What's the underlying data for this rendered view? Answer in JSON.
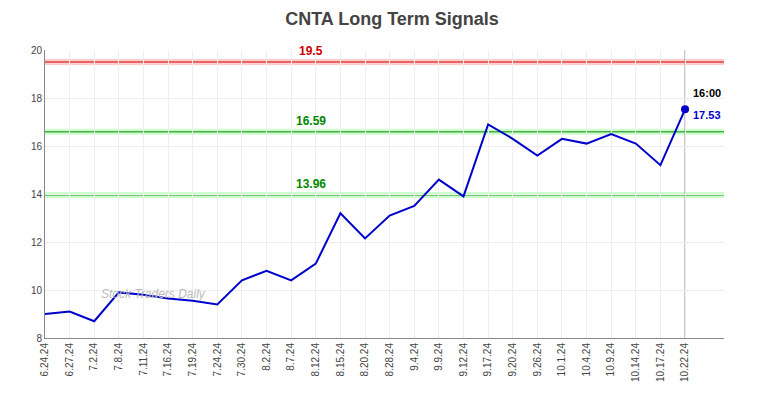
{
  "chart_data": {
    "type": "line",
    "title": "CNTA Long Term Signals",
    "categories": [
      "6.24.24",
      "6.27.24",
      "7.2.24",
      "7.8.24",
      "7.11.24",
      "7.16.24",
      "7.19.24",
      "7.24.24",
      "7.30.24",
      "8.2.24",
      "8.7.24",
      "8.12.24",
      "8.15.24",
      "8.20.24",
      "8.28.24",
      "9.4.24",
      "9.9.24",
      "9.12.24",
      "9.17.24",
      "9.20.24",
      "9.26.24",
      "10.1.24",
      "10.4.24",
      "10.9.24",
      "10.14.24",
      "10.17.24",
      "10.22.24"
    ],
    "values": [
      9.0,
      9.1,
      8.7,
      9.9,
      9.8,
      9.65,
      9.55,
      9.4,
      10.4,
      10.8,
      10.4,
      11.1,
      13.2,
      12.15,
      13.1,
      13.5,
      14.6,
      13.9,
      16.9,
      16.3,
      15.6,
      16.3,
      16.1,
      16.5,
      16.1,
      15.2,
      17.53
    ],
    "color": "#0000cc",
    "ylim": [
      8,
      20
    ],
    "yticks": [
      8,
      10,
      12,
      14,
      16,
      18,
      20
    ],
    "grid": true,
    "hlines": [
      {
        "value": 19.5,
        "label": "19.5",
        "color": "#cc0000",
        "fill": "#ffcccc"
      },
      {
        "value": 16.59,
        "label": "16.59",
        "color": "#008800",
        "fill": "#ccffcc"
      },
      {
        "value": 13.96,
        "label": "13.96",
        "color": "#008800",
        "fill": "#ccffcc"
      }
    ],
    "last_point": {
      "value": 17.53,
      "label": "17.53",
      "time_label": "16:00"
    },
    "watermark": "Stock Traders Daily"
  }
}
